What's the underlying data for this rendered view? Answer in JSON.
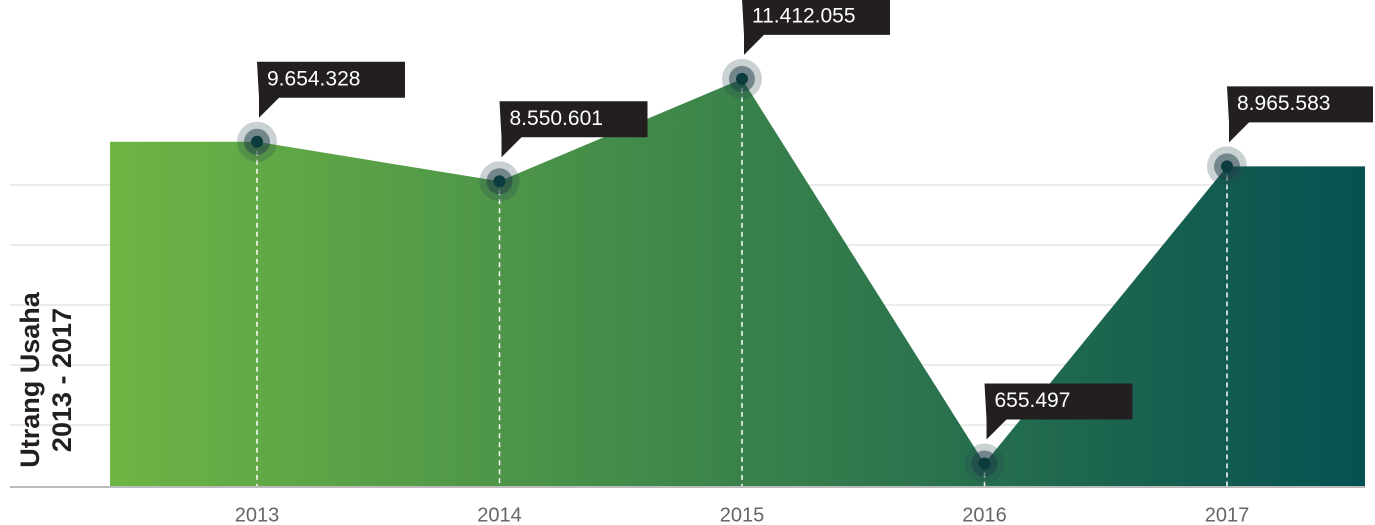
{
  "chart_data": {
    "type": "area",
    "y_label": [
      "Utrang Usaha",
      "2013 - 2017"
    ],
    "categories": [
      "2013",
      "2014",
      "2015",
      "2016",
      "2017"
    ],
    "values": [
      9654328,
      8550601,
      11412055,
      655497,
      8965583
    ],
    "value_labels": [
      "9.654.328",
      "8.550.601",
      "11.412.055",
      "655.497",
      "8.965.583"
    ],
    "colors": [
      "#6db544",
      "#065052"
    ],
    "ylim": [
      0,
      12500000
    ]
  }
}
